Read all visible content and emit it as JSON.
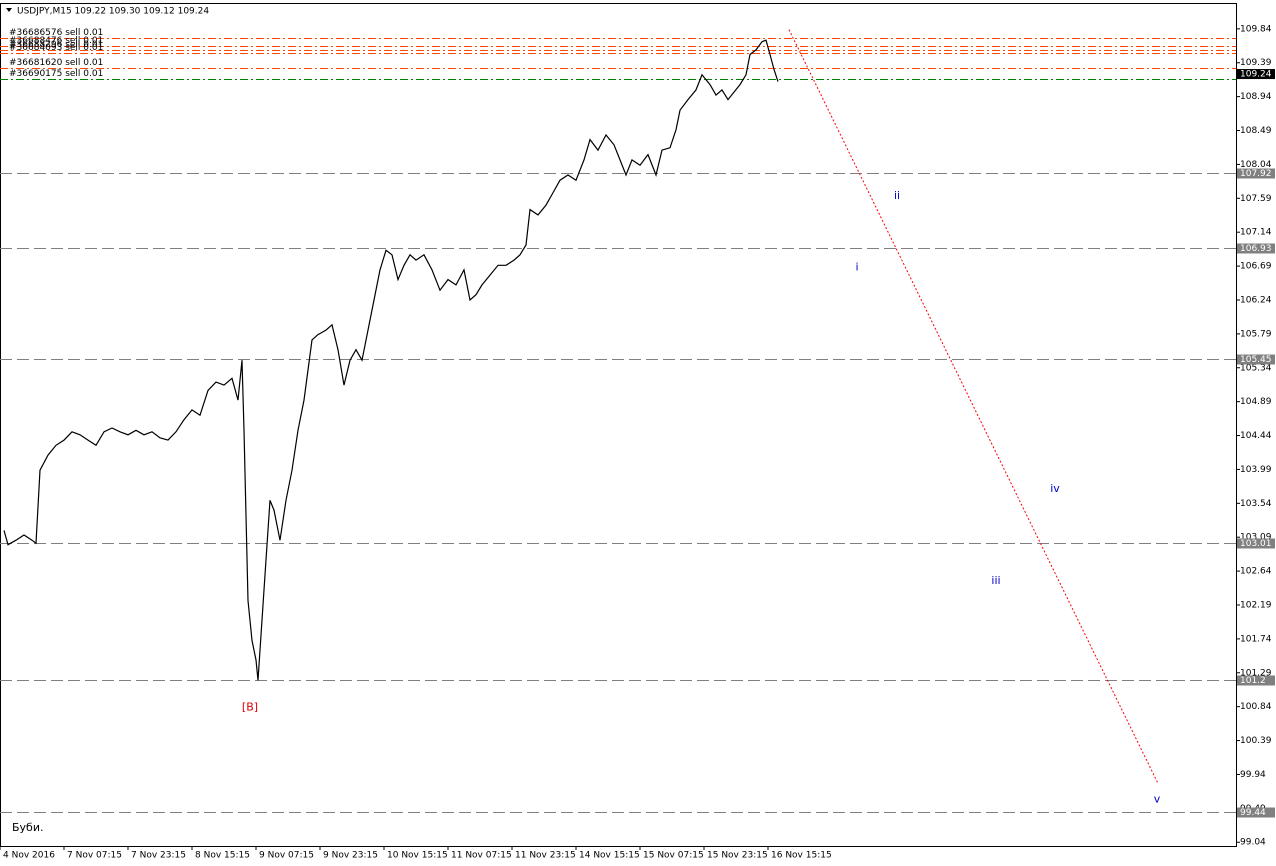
{
  "chart_data": {
    "type": "line",
    "title": "USDJPY,M15  109.22 109.30 109.12 109.24",
    "x": [
      4,
      8,
      16,
      24,
      32,
      36,
      40,
      48,
      56,
      64,
      72,
      80,
      88,
      96,
      104,
      112,
      120,
      128,
      136,
      144,
      152,
      160,
      168,
      176,
      184,
      192,
      200,
      208,
      216,
      224,
      232,
      238,
      242,
      244,
      248,
      252,
      256,
      258,
      262,
      266,
      270,
      274,
      280,
      286,
      292,
      298,
      304,
      308,
      312,
      318,
      326,
      332,
      338,
      344,
      350,
      356,
      362,
      368,
      374,
      380,
      386,
      392,
      398,
      404,
      410,
      416,
      424,
      432,
      440,
      448,
      456,
      464,
      470,
      476,
      482,
      490,
      498,
      506,
      514,
      520,
      526,
      530,
      538,
      546,
      552,
      560,
      568,
      576,
      584,
      590,
      598,
      606,
      614,
      620,
      626,
      632,
      640,
      648,
      656,
      662,
      670,
      676,
      680,
      688,
      696,
      702,
      710,
      716,
      722,
      728,
      734,
      740,
      746,
      750,
      756,
      762,
      766,
      770,
      774,
      778
    ],
    "values": [
      103.18,
      102.99,
      103.05,
      103.12,
      103.05,
      103.01,
      103.98,
      104.18,
      104.31,
      104.38,
      104.49,
      104.45,
      104.38,
      104.31,
      104.49,
      104.54,
      104.49,
      104.45,
      104.51,
      104.45,
      104.49,
      104.41,
      104.38,
      104.49,
      104.65,
      104.78,
      104.71,
      105.04,
      105.15,
      105.11,
      105.2,
      104.91,
      105.44,
      104.51,
      102.25,
      101.72,
      101.46,
      101.19,
      101.99,
      102.79,
      103.58,
      103.45,
      103.05,
      103.58,
      103.98,
      104.51,
      104.91,
      105.31,
      105.71,
      105.78,
      105.84,
      105.91,
      105.58,
      105.11,
      105.44,
      105.58,
      105.44,
      105.84,
      106.24,
      106.64,
      106.9,
      106.84,
      106.51,
      106.7,
      106.84,
      106.77,
      106.84,
      106.64,
      106.37,
      106.51,
      106.44,
      106.64,
      106.24,
      106.31,
      106.44,
      106.57,
      106.7,
      106.7,
      106.77,
      106.84,
      106.97,
      107.44,
      107.37,
      107.5,
      107.64,
      107.83,
      107.9,
      107.83,
      108.1,
      108.37,
      108.23,
      108.43,
      108.3,
      108.1,
      107.9,
      108.1,
      108.03,
      108.17,
      107.9,
      108.23,
      108.26,
      108.5,
      108.76,
      108.9,
      109.03,
      109.23,
      109.1,
      108.96,
      109.03,
      108.9,
      109.0,
      109.1,
      109.23,
      109.5,
      109.56,
      109.67,
      109.69,
      109.5,
      109.3,
      109.14
    ],
    "color": "#000000",
    "xlim": [
      0,
      1236
    ],
    "xticks": [
      {
        "value": 0,
        "label": "4 Nov 2016"
      },
      {
        "value": 64,
        "label": "7 Nov 07:15"
      },
      {
        "value": 128,
        "label": "7 Nov 23:15"
      },
      {
        "value": 192,
        "label": "8 Nov 15:15"
      },
      {
        "value": 256,
        "label": "9 Nov 07:15"
      },
      {
        "value": 320,
        "label": "9 Nov 23:15"
      },
      {
        "value": 384,
        "label": "10 Nov 15:15"
      },
      {
        "value": 448,
        "label": "11 Nov 07:15"
      },
      {
        "value": 512,
        "label": "11 Nov 23:15"
      },
      {
        "value": 576,
        "label": "14 Nov 15:15"
      },
      {
        "value": 640,
        "label": "15 Nov 07:15"
      },
      {
        "value": 704,
        "label": "15 Nov 23:15"
      },
      {
        "value": 768,
        "label": "16 Nov 15:15"
      }
    ],
    "ylim": [
      98.99,
      110.17
    ],
    "yticks": [
      109.84,
      109.39,
      108.94,
      108.49,
      108.04,
      107.59,
      107.14,
      106.69,
      106.24,
      105.79,
      105.34,
      104.89,
      104.44,
      103.99,
      103.54,
      103.09,
      102.64,
      102.19,
      101.74,
      101.29,
      100.84,
      100.39,
      99.94,
      99.49,
      99.04
    ],
    "levels": {
      "values": [
        107.92,
        106.93,
        105.45,
        103.01,
        101.2,
        99.44
      ],
      "color": "#808080"
    },
    "current_price": 109.24,
    "orders": [
      {
        "label": "#36686576 sell 0.01",
        "price": 109.72,
        "color": "#ff4500"
      },
      {
        "label": "#36688476 sell 0.01",
        "price": 109.61,
        "color": "#ff4500"
      },
      {
        "label": "#36688296 sell 0.01",
        "price": 109.56,
        "color": "#ff4500"
      },
      {
        "label": "#36684093 sell 0.01",
        "price": 109.52,
        "color": "#ff4500"
      },
      {
        "label": "#36681620 sell 0.01",
        "price": 109.32,
        "color": "#ff4500"
      },
      {
        "label": "#36690175 sell 0.01",
        "price": 109.18,
        "color": "#008000"
      }
    ],
    "projection": {
      "x": [
        789,
        1158
      ],
      "y": [
        109.83,
        99.82
      ],
      "color": "#ff0000"
    },
    "wave_labels": [
      {
        "label": "[B]",
        "x": 250,
        "y": 100.83,
        "color": "#dd0000"
      },
      {
        "label": "i",
        "x": 857,
        "y": 106.67,
        "color": "#0000cc"
      },
      {
        "label": "ii",
        "x": 897,
        "y": 107.62,
        "color": "#0000cc"
      },
      {
        "label": "iii",
        "x": 996,
        "y": 102.51,
        "color": "#0000cc"
      },
      {
        "label": "iv",
        "x": 1055,
        "y": 103.73,
        "color": "#0000cc"
      },
      {
        "label": "v",
        "x": 1157,
        "y": 99.61,
        "color": "#0000cc"
      }
    ],
    "note": "Буби."
  }
}
